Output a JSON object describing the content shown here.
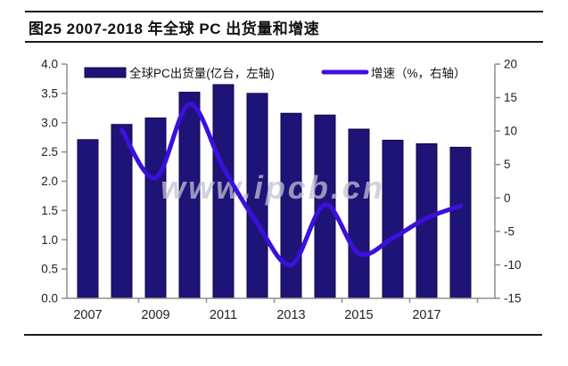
{
  "page": {
    "title": "图25  2007-2018 年全球 PC 出货量和增速",
    "watermark": "www.ipcb.cn"
  },
  "chart_data": {
    "type": "bar",
    "subtype": "bar-and-line-combo",
    "title": "图25 2007-2018 年全球 PC 出货量和增速",
    "categories": [
      "2007",
      "2008",
      "2009",
      "2010",
      "2011",
      "2012",
      "2013",
      "2014",
      "2015",
      "2016",
      "2017",
      "2018"
    ],
    "series": [
      {
        "name": "全球PC出货量(亿台，左轴)",
        "type": "bar",
        "axis": "left",
        "color": "#1E1478",
        "border_color": "#10093f",
        "values": [
          2.71,
          2.97,
          3.08,
          3.52,
          3.65,
          3.5,
          3.16,
          3.13,
          2.89,
          2.7,
          2.64,
          2.58
        ]
      },
      {
        "name": "增速（%，右轴）",
        "type": "line",
        "axis": "right",
        "color": "#3C10DC",
        "values": [
          null,
          10.2,
          3.0,
          14.0,
          4.5,
          -3.8,
          -10.0,
          -1.0,
          -8.3,
          -6.0,
          -3.0,
          -1.2
        ]
      }
    ],
    "left_axis": {
      "min": 0.0,
      "max": 4.0,
      "step": 0.5,
      "ticks": [
        "0.0",
        "0.5",
        "1.0",
        "1.5",
        "2.0",
        "2.5",
        "3.0",
        "3.5",
        "4.0"
      ]
    },
    "right_axis": {
      "min": -15,
      "max": 20,
      "step": 5,
      "ticks": [
        "-15",
        "-10",
        "-5",
        "0",
        "5",
        "10",
        "15",
        "20"
      ]
    },
    "x_tick_labels": [
      "2007",
      "2009",
      "2011",
      "2013",
      "2015",
      "2017"
    ],
    "legend_position": "top-inside",
    "grid": false,
    "axis_color": "#8f8f8f"
  }
}
